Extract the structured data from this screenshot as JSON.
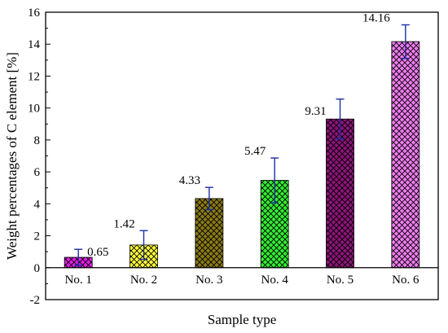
{
  "chart_data": {
    "type": "bar",
    "categories": [
      "No. 1",
      "No. 2",
      "No. 3",
      "No. 4",
      "No. 5",
      "No. 6"
    ],
    "values": [
      0.65,
      1.42,
      4.33,
      5.47,
      9.31,
      14.16
    ],
    "errors": [
      0.5,
      0.9,
      0.7,
      1.4,
      1.25,
      1.05
    ],
    "data_labels": [
      "0.65",
      "1.42",
      "4.33",
      "5.47",
      "9.31",
      "14.16"
    ],
    "colors": [
      "#e61ee6",
      "#ffff3c",
      "#8a7a14",
      "#33ee33",
      "#8c1478",
      "#f07cf0"
    ],
    "error_color": "#1a2fa8",
    "pattern": "crosshatch",
    "xlabel": "Sample type",
    "ylabel": "Weight percentages of C element [%]",
    "ylim": [
      -2,
      16
    ],
    "yticks": [
      -2,
      0,
      2,
      4,
      6,
      8,
      10,
      12,
      14,
      16
    ],
    "ytick_labels": [
      "-2",
      "0",
      "2",
      "4",
      "6",
      "8",
      "10",
      "12",
      "14",
      "16"
    ],
    "grid": false,
    "legend": "none"
  }
}
